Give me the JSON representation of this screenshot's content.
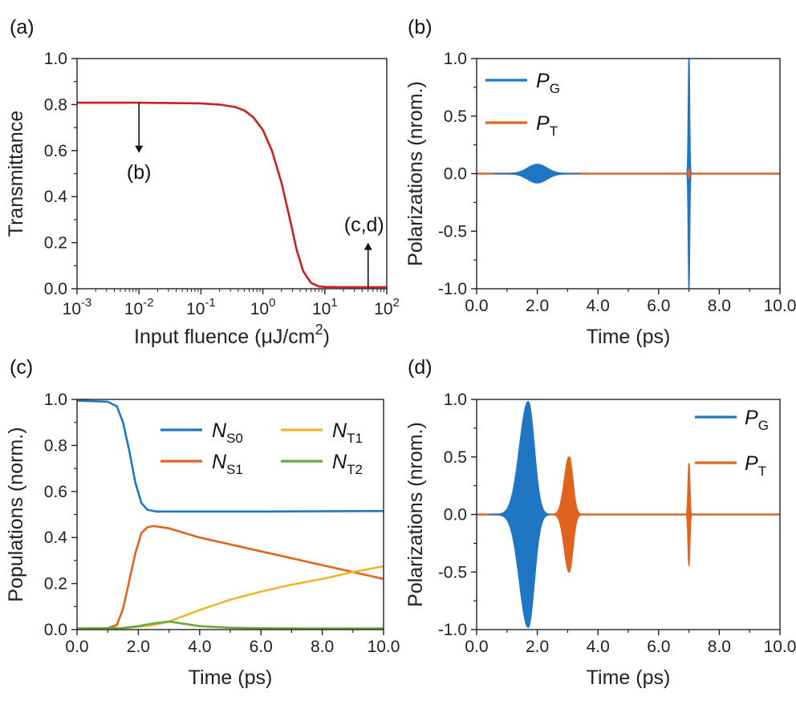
{
  "chart_data": [
    {
      "id": "a",
      "panel_label": "(a)",
      "type": "line",
      "xscale": "log",
      "xlabel": "Input fluence (μJ/cm",
      "xlabel_sup": "2",
      "xlabel_close": ")",
      "ylabel": "Transmittance",
      "xlim": [
        0.001,
        100
      ],
      "ylim": [
        0,
        1
      ],
      "x_ticks": [
        {
          "base": "10",
          "exp": "-3"
        },
        {
          "base": "10",
          "exp": "-2"
        },
        {
          "base": "10",
          "exp": "-1"
        },
        {
          "base": "10",
          "exp": "0"
        },
        {
          "base": "10",
          "exp": "1"
        },
        {
          "base": "10",
          "exp": "2"
        }
      ],
      "y_ticks": [
        "0.0",
        "0.2",
        "0.4",
        "0.6",
        "0.8",
        "1.0"
      ],
      "series": [
        {
          "name": "Transmittance",
          "color": "#cc1f1f",
          "x": [
            0.001,
            0.01,
            0.1,
            0.2,
            0.35,
            0.5,
            0.7,
            1.0,
            1.4,
            2.0,
            2.8,
            3.5,
            4.5,
            6.0,
            8.0,
            10.0,
            20.0,
            100.0
          ],
          "y": [
            0.808,
            0.808,
            0.805,
            0.8,
            0.79,
            0.775,
            0.745,
            0.69,
            0.6,
            0.46,
            0.29,
            0.17,
            0.075,
            0.025,
            0.01,
            0.008,
            0.007,
            0.007
          ]
        }
      ],
      "annotations": [
        {
          "text": "(b)",
          "x": 0.01,
          "arrow_from": 0.808,
          "arrow_to": 0.59,
          "label_y": 0.52,
          "direction": "down"
        },
        {
          "text": "(c,d)",
          "x": 50,
          "arrow_from": 0.005,
          "arrow_to": 0.2,
          "label_y": 0.25,
          "direction": "up"
        }
      ]
    },
    {
      "id": "b",
      "panel_label": "(b)",
      "type": "line",
      "xlabel": "Time (ps)",
      "ylabel": "Polarizations (nrom.)",
      "xlim": [
        0,
        10
      ],
      "ylim": [
        -1,
        1
      ],
      "x_ticks": [
        "0.0",
        "2.0",
        "4.0",
        "6.0",
        "8.0",
        "10.0"
      ],
      "y_ticks": [
        "-1.0",
        "-0.5",
        "0.0",
        "0.5",
        "1.0"
      ],
      "legend": {
        "position": "top-left",
        "entries": [
          {
            "base": "P",
            "sub": "G",
            "color": "#1f77c4"
          },
          {
            "base": "P",
            "sub": "T",
            "color": "#e0631e"
          }
        ]
      },
      "pulses": [
        {
          "series": "P_G",
          "color": "#1f77c4",
          "center": 2.0,
          "width": 0.45,
          "amplitude": 0.08
        },
        {
          "series": "P_G",
          "color": "#1f77c4",
          "center": 7.0,
          "width": 0.03,
          "amplitude": 1.0
        },
        {
          "series": "P_T",
          "color": "#e0631e",
          "center": 7.0,
          "width": 0.03,
          "amplitude": 0.04
        }
      ]
    },
    {
      "id": "c",
      "panel_label": "(c)",
      "type": "line",
      "xlabel": "Time (ps)",
      "ylabel": "Populations (norm.)",
      "xlim": [
        0,
        10
      ],
      "ylim": [
        0,
        1
      ],
      "x_ticks": [
        "0.0",
        "2.0",
        "4.0",
        "6.0",
        "8.0",
        "10.0"
      ],
      "y_ticks": [
        "0.0",
        "0.2",
        "0.4",
        "0.6",
        "0.8",
        "1.0"
      ],
      "legend": {
        "position": "top-right",
        "entries": [
          {
            "base": "N",
            "sub": "S0",
            "color": "#1f77c4"
          },
          {
            "base": "N",
            "sub": "T1",
            "color": "#f0b429"
          },
          {
            "base": "N",
            "sub": "S1",
            "color": "#e0631e"
          },
          {
            "base": "N",
            "sub": "T2",
            "color": "#6aa83c"
          }
        ]
      },
      "series": [
        {
          "name": "N_S0",
          "color": "#1f77c4",
          "x": [
            0,
            1.0,
            1.3,
            1.5,
            1.7,
            1.9,
            2.1,
            2.3,
            2.6,
            3.0,
            6.0,
            10.0
          ],
          "y": [
            0.995,
            0.99,
            0.97,
            0.9,
            0.78,
            0.64,
            0.55,
            0.52,
            0.513,
            0.513,
            0.513,
            0.515
          ]
        },
        {
          "name": "N_S1",
          "color": "#e0631e",
          "x": [
            0,
            1.0,
            1.3,
            1.5,
            1.7,
            1.9,
            2.1,
            2.3,
            2.5,
            3.0,
            4.0,
            6.0,
            8.0,
            10.0
          ],
          "y": [
            0.005,
            0.006,
            0.02,
            0.09,
            0.21,
            0.33,
            0.42,
            0.445,
            0.45,
            0.44,
            0.4,
            0.34,
            0.28,
            0.22
          ]
        },
        {
          "name": "N_T1",
          "color": "#f0b429",
          "x": [
            0,
            1.5,
            2.5,
            3.0,
            4.0,
            5.0,
            6.0,
            7.0,
            8.0,
            9.0,
            10.0
          ],
          "y": [
            0.005,
            0.006,
            0.02,
            0.035,
            0.085,
            0.13,
            0.165,
            0.195,
            0.22,
            0.25,
            0.275
          ]
        },
        {
          "name": "N_T2",
          "color": "#6aa83c",
          "x": [
            0,
            1.5,
            2.0,
            2.5,
            3.0,
            3.5,
            4.0,
            5.0,
            6.0,
            8.0,
            10.0
          ],
          "y": [
            0.005,
            0.007,
            0.015,
            0.027,
            0.035,
            0.025,
            0.015,
            0.008,
            0.006,
            0.005,
            0.005
          ]
        }
      ]
    },
    {
      "id": "d",
      "panel_label": "(d)",
      "type": "line",
      "xlabel": "Time (ps)",
      "ylabel": "Polarizations (nrom.)",
      "xlim": [
        0,
        10
      ],
      "ylim": [
        -1,
        1
      ],
      "x_ticks": [
        "0.0",
        "2.0",
        "4.0",
        "6.0",
        "8.0",
        "10.0"
      ],
      "y_ticks": [
        "-1.0",
        "-0.5",
        "0.0",
        "0.5",
        "1.0"
      ],
      "legend": {
        "position": "top-right",
        "entries": [
          {
            "base": "P",
            "sub": "G",
            "color": "#1f77c4"
          },
          {
            "base": "P",
            "sub": "T",
            "color": "#e0631e"
          }
        ]
      },
      "pulses": [
        {
          "series": "P_G",
          "color": "#1f77c4",
          "center": 1.7,
          "width": 0.35,
          "amplitude": 0.98,
          "rise": 0.4,
          "fall": 0.28
        },
        {
          "series": "P_T",
          "color": "#e0631e",
          "center": 3.05,
          "width": 0.2,
          "amplitude": 0.5,
          "rise": 0.22,
          "fall": 0.17
        },
        {
          "series": "P_T",
          "color": "#e0631e",
          "center": 7.0,
          "width": 0.04,
          "amplitude": 0.44
        }
      ]
    }
  ]
}
